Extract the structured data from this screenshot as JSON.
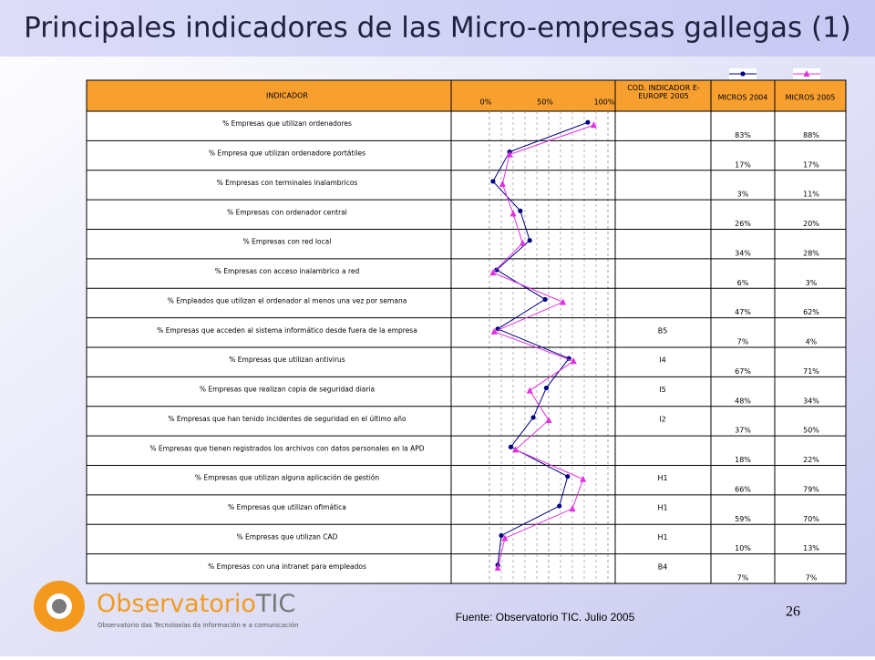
{
  "header": {
    "title": "Principales indicadores de las Micro-empresas gallegas (1)",
    "page_number": "26"
  },
  "table": {
    "indicator_header": "INDICADOR",
    "code_header": "COD. INDICADOR E-EUROPE 2005",
    "codes": [
      null,
      null,
      null,
      null,
      null,
      null,
      null,
      "B5",
      "I4",
      "I5",
      "I2",
      null,
      "H1",
      "H1",
      "H1",
      "B4"
    ]
  },
  "chart_data": {
    "type": "line",
    "orientation": "horizontal",
    "categories": [
      "% Empresas que utilizan ordenadores",
      "% Empresa que utilizan ordenadore portátiles",
      "% Empresas con terminales inalambricos",
      "% Empresas con ordenador central",
      "% Empresas con red local",
      "% Empresas con acceso inalambrico a red",
      "% Empleados que utilizan el ordenador al menos una vez por semana",
      "% Empresas que acceden al sistema informático desde fuera de la empresa",
      "% Empresas que utilizan antivirus",
      "% Empresas que realizan copia de seguridad diaria",
      "% Empresas que han tenido incidentes de seguridad en el último año",
      "% Empresas que tienen registrados los archivos con datos personales en la APD",
      "% Empresas que utilizan alguna aplicación de gestión",
      "% Empresas que utilizan ofimática",
      "% Empresas que utilizan CAD",
      "% Empresas con una intranet para empleados"
    ],
    "series": [
      {
        "name": "MICROS 2004",
        "color": "#000080",
        "marker": "circle",
        "values": [
          83,
          17,
          3,
          26,
          34,
          6,
          47,
          7,
          67,
          48,
          37,
          18,
          66,
          59,
          10,
          7
        ],
        "value_labels": [
          "83%",
          "17%",
          "3%",
          "26%",
          "34%",
          "6%",
          "47%",
          "7%",
          "67%",
          "48%",
          "37%",
          "18%",
          "66%",
          "59%",
          "10%",
          "7%"
        ]
      },
      {
        "name": "MICROS 2005",
        "color": "#e030e0",
        "marker": "triangle",
        "values": [
          88,
          17,
          11,
          20,
          28,
          3,
          62,
          4,
          71,
          34,
          50,
          22,
          79,
          70,
          13,
          7
        ],
        "value_labels": [
          "88%",
          "17%",
          "11%",
          "20%",
          "28%",
          "3%",
          "62%",
          "4%",
          "71%",
          "34%",
          "50%",
          "22%",
          "79%",
          "70%",
          "13%",
          "7%"
        ]
      }
    ],
    "xlim": [
      0,
      100
    ],
    "xticks": [
      {
        "value": 0,
        "label": "0%"
      },
      {
        "value": 50,
        "label": "50%"
      },
      {
        "value": 100,
        "label": "100%"
      }
    ],
    "grid": true
  },
  "footer": {
    "source": "Fuente: Observatorio TIC.  Julio 2005",
    "logo_name_a": "Observatorio",
    "logo_name_b": "TIC",
    "logo_subtitle": "Observatorio das Tecnoloxías da información e a comunicación"
  }
}
